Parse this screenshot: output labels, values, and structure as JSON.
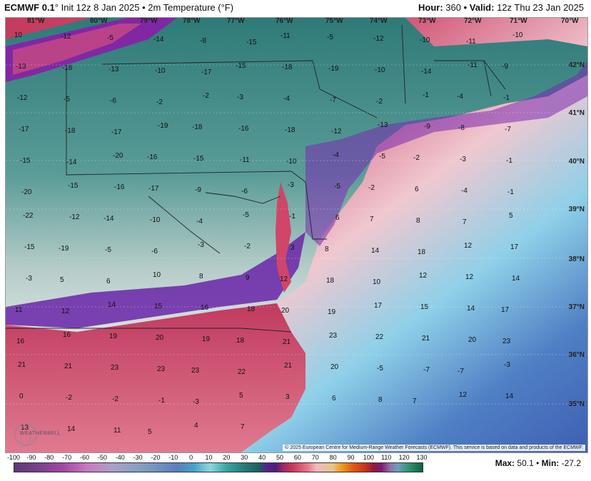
{
  "header": {
    "model": "ECMWF 0.1",
    "init": "° Init 12z 8 Jan 2025 • 2m Temperature (°F)",
    "hour_label": "Hour:",
    "hour_value": "360",
    "valid_label": "• Valid:",
    "valid_value": "12z Thu 23 Jan 2025"
  },
  "longitudes": [
    "81°W",
    "80°W",
    "79°W",
    "78°W",
    "77°W",
    "76°W",
    "75°W",
    "74°W",
    "73°W",
    "72°W",
    "71°W",
    "70°W"
  ],
  "latitudes": [
    "42°N",
    "41°N",
    "40°N",
    "39°N",
    "38°N",
    "37°N",
    "36°N",
    "35°N"
  ],
  "temperatures": [
    {
      "v": "10"
    },
    {
      "v": "-12"
    },
    {
      "v": "-5"
    },
    {
      "v": "-14"
    },
    {
      "v": "-8"
    },
    {
      "v": "-15"
    },
    {
      "v": "-11"
    },
    {
      "v": "-5"
    },
    {
      "v": "-12"
    },
    {
      "v": "-10"
    },
    {
      "v": "-11"
    },
    {
      "v": "-10"
    },
    {
      "v": "-13"
    },
    {
      "v": "-16"
    },
    {
      "v": "-13"
    },
    {
      "v": "-10"
    },
    {
      "v": "-17"
    },
    {
      "v": "-15"
    },
    {
      "v": "-18"
    },
    {
      "v": "-19"
    },
    {
      "v": "-10"
    },
    {
      "v": "-14"
    },
    {
      "v": "-11"
    },
    {
      "v": "-9"
    },
    {
      "v": "-12"
    },
    {
      "v": "-5"
    },
    {
      "v": "-6"
    },
    {
      "v": "-2"
    },
    {
      "v": "-2"
    },
    {
      "v": "-3"
    },
    {
      "v": "-4"
    },
    {
      "v": "-7"
    },
    {
      "v": "-2"
    },
    {
      "v": "-1"
    },
    {
      "v": "-4"
    },
    {
      "v": "-1"
    },
    {
      "v": "-17"
    },
    {
      "v": "-18"
    },
    {
      "v": "-17"
    },
    {
      "v": "-19"
    },
    {
      "v": "-18"
    },
    {
      "v": "-16"
    },
    {
      "v": "-18"
    },
    {
      "v": "-12"
    },
    {
      "v": "-13"
    },
    {
      "v": "-9"
    },
    {
      "v": "-8"
    },
    {
      "v": "-7"
    },
    {
      "v": "-15"
    },
    {
      "v": "-14"
    },
    {
      "v": "-20"
    },
    {
      "v": "-16"
    },
    {
      "v": "-15"
    },
    {
      "v": "-11"
    },
    {
      "v": "-10"
    },
    {
      "v": "-4"
    },
    {
      "v": "-5"
    },
    {
      "v": "-2"
    },
    {
      "v": "-3"
    },
    {
      "v": "-1"
    },
    {
      "v": "-20"
    },
    {
      "v": "-15"
    },
    {
      "v": "-16"
    },
    {
      "v": "-17"
    },
    {
      "v": "-9"
    },
    {
      "v": "-6"
    },
    {
      "v": "-3"
    },
    {
      "v": "-5"
    },
    {
      "v": "-2"
    },
    {
      "v": "6"
    },
    {
      "v": "-4"
    },
    {
      "v": "-1"
    },
    {
      "v": "-22"
    },
    {
      "v": "-12"
    },
    {
      "v": "-14"
    },
    {
      "v": "-10"
    },
    {
      "v": "-4"
    },
    {
      "v": "-5"
    },
    {
      "v": "-1"
    },
    {
      "v": "6"
    },
    {
      "v": "7"
    },
    {
      "v": "8"
    },
    {
      "v": "7"
    },
    {
      "v": "5"
    },
    {
      "v": "-15"
    },
    {
      "v": "-19"
    },
    {
      "v": "-5"
    },
    {
      "v": "-6"
    },
    {
      "v": "-3"
    },
    {
      "v": "-2"
    },
    {
      "v": "3"
    },
    {
      "v": "8"
    },
    {
      "v": "14"
    },
    {
      "v": "18"
    },
    {
      "v": "12"
    },
    {
      "v": "17"
    },
    {
      "v": "-3"
    },
    {
      "v": "5"
    },
    {
      "v": "6"
    },
    {
      "v": "10"
    },
    {
      "v": "8"
    },
    {
      "v": "9"
    },
    {
      "v": "12"
    },
    {
      "v": "18"
    },
    {
      "v": "10"
    },
    {
      "v": "12"
    },
    {
      "v": "12"
    },
    {
      "v": "14"
    },
    {
      "v": "11"
    },
    {
      "v": "12"
    },
    {
      "v": "14"
    },
    {
      "v": "15"
    },
    {
      "v": "16"
    },
    {
      "v": "18"
    },
    {
      "v": "20"
    },
    {
      "v": "19"
    },
    {
      "v": "17"
    },
    {
      "v": "15"
    },
    {
      "v": "14"
    },
    {
      "v": "17"
    },
    {
      "v": "16"
    },
    {
      "v": "16"
    },
    {
      "v": "19"
    },
    {
      "v": "20"
    },
    {
      "v": "19"
    },
    {
      "v": "18"
    },
    {
      "v": "21"
    },
    {
      "v": "23"
    },
    {
      "v": "22"
    },
    {
      "v": "21"
    },
    {
      "v": "20"
    },
    {
      "v": "23"
    },
    {
      "v": "21"
    },
    {
      "v": "21"
    },
    {
      "v": "23"
    },
    {
      "v": "23"
    },
    {
      "v": "23"
    },
    {
      "v": "22"
    },
    {
      "v": "21"
    },
    {
      "v": "20"
    },
    {
      "v": "-5"
    },
    {
      "v": "-7"
    },
    {
      "v": "-7"
    },
    {
      "v": "-3"
    },
    {
      "v": "0"
    },
    {
      "v": "-2"
    },
    {
      "v": "-2"
    },
    {
      "v": "-1"
    },
    {
      "v": "-3"
    },
    {
      "v": "5"
    },
    {
      "v": "3"
    },
    {
      "v": "6"
    },
    {
      "v": "8"
    },
    {
      "v": "7"
    },
    {
      "v": "12"
    },
    {
      "v": "14"
    },
    {
      "v": "13"
    },
    {
      "v": "14"
    },
    {
      "v": "11"
    },
    {
      "v": "5"
    },
    {
      "v": "4"
    },
    {
      "v": "7"
    }
  ],
  "copyright": "© 2025 European Centre for Medium-Range Weather Forecasts (ECMWF). This service is based on data and products of the ECMWF.",
  "logo": "WEATHERBELL",
  "colorbar": {
    "ticks": [
      "-100",
      "-90",
      "-80",
      "-70",
      "-60",
      "-50",
      "-40",
      "-30",
      "-20",
      "-10",
      "0",
      "10",
      "20",
      "30",
      "40",
      "50",
      "60",
      "70",
      "80",
      "90",
      "100",
      "110",
      "120",
      "130"
    ]
  },
  "footer": {
    "max_label": "Max:",
    "max_value": "50.1",
    "sep": "•",
    "min_label": "Min:",
    "min_value": "-27.2"
  }
}
